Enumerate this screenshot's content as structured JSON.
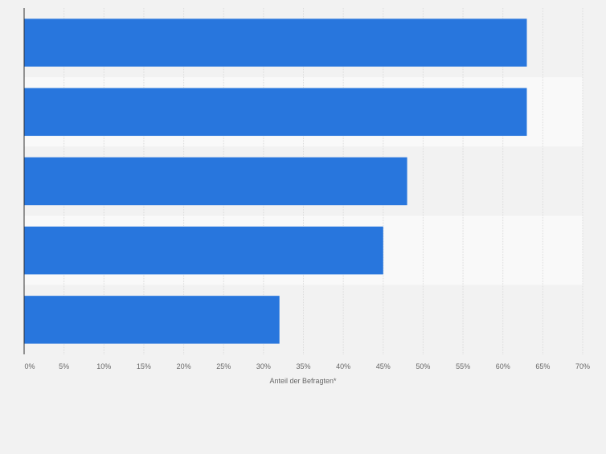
{
  "chart_data": {
    "type": "bar",
    "orientation": "horizontal",
    "categories": [
      "",
      "",
      "",
      "",
      ""
    ],
    "values": [
      63,
      63,
      48,
      45,
      32
    ],
    "xlabel": "Anteil der Befragten*",
    "ylabel": "",
    "xlim": [
      0,
      70
    ],
    "x_ticks": [
      "0%",
      "5%",
      "10%",
      "15%",
      "20%",
      "25%",
      "30%",
      "35%",
      "40%",
      "45%",
      "50%",
      "55%",
      "60%",
      "65%",
      "70%"
    ],
    "grid": true,
    "bar_color": "#2876dd",
    "band_colors": [
      "#f2f2f2",
      "#f9f9f9"
    ]
  }
}
